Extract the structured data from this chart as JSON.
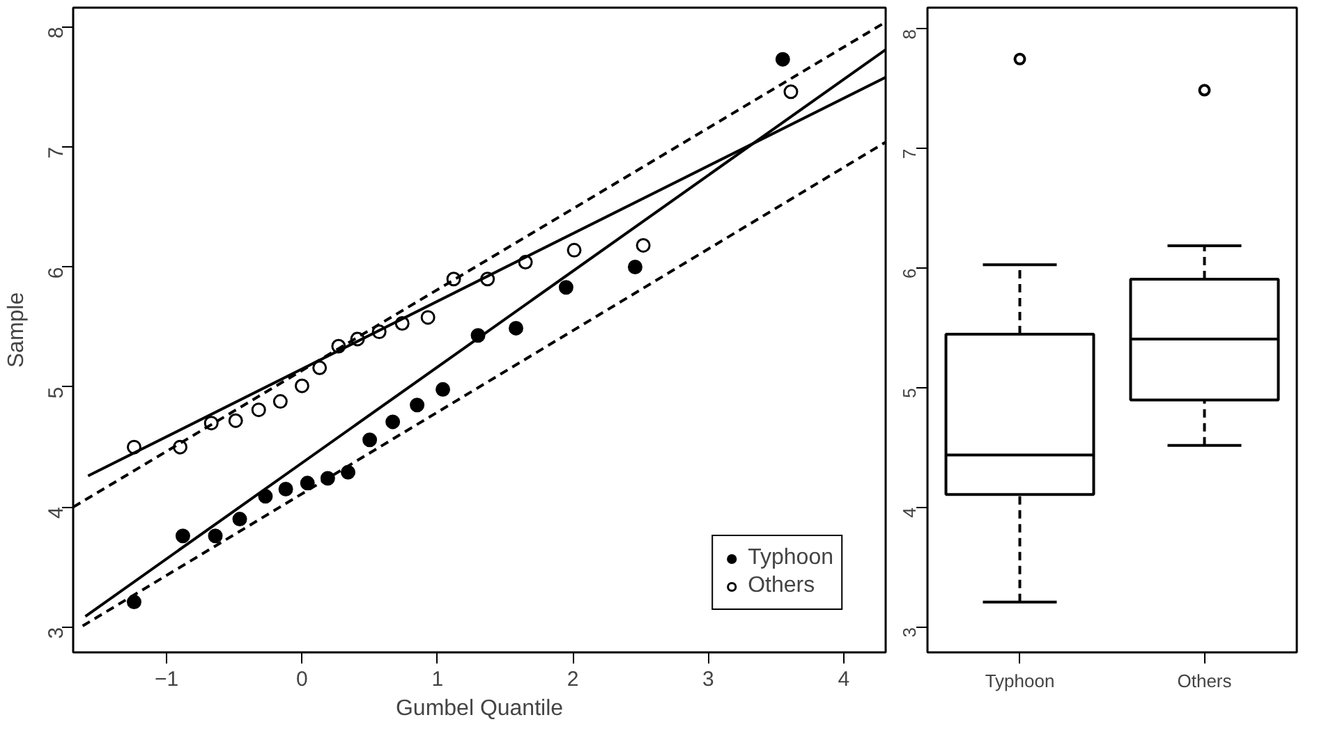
{
  "chart_data": [
    {
      "type": "scatter",
      "xlabel": "Gumbel Quantile",
      "ylabel": "Sample",
      "xlim": [
        -1.69,
        4.31
      ],
      "ylim": [
        2.79,
        8.16
      ],
      "xticks": [
        -1,
        0,
        1,
        2,
        3,
        4
      ],
      "yticks": [
        3,
        4,
        5,
        6,
        7,
        8
      ],
      "grid": false,
      "legend": "bottom right",
      "series": [
        {
          "name": "Typhoon",
          "color": "#000000",
          "marker": "circle",
          "x": [
            -1.24,
            -0.88,
            -0.64,
            -0.46,
            -0.27,
            -0.12,
            0.04,
            0.19,
            0.34,
            0.5,
            0.67,
            0.85,
            1.04,
            1.3,
            1.58,
            1.95,
            2.46,
            3.55
          ],
          "values": [
            3.21,
            3.76,
            3.76,
            3.9,
            4.09,
            4.15,
            4.2,
            4.24,
            4.29,
            4.56,
            4.71,
            4.85,
            4.98,
            5.43,
            5.49,
            5.83,
            6.0,
            7.73
          ]
        },
        {
          "name": "Others",
          "color": "#000000",
          "marker": "circle",
          "x": [
            -1.24,
            -0.9,
            -0.67,
            -0.49,
            -0.32,
            -0.16,
            0.0,
            0.13,
            0.27,
            0.41,
            0.57,
            0.74,
            0.93,
            1.12,
            1.37,
            1.65,
            2.01,
            2.52,
            3.61
          ],
          "values": [
            4.5,
            4.5,
            4.7,
            4.72,
            4.81,
            4.88,
            5.01,
            5.16,
            5.34,
            5.4,
            5.46,
            5.53,
            5.58,
            5.9,
            5.9,
            6.04,
            6.14,
            6.18,
            7.46
          ]
        },
        {
          "type": "line",
          "color": "#000000",
          "line_style": "solid",
          "x": [
            -1.6,
            4.31
          ],
          "values": [
            3.09,
            7.81
          ]
        },
        {
          "type": "line",
          "color": "#000000",
          "line_style": "solid",
          "x": [
            -1.58,
            4.31
          ],
          "values": [
            4.26,
            7.58
          ]
        },
        {
          "type": "line",
          "color": "#000000",
          "line_style": "dashed",
          "x": [
            -1.69,
            4.31
          ],
          "values": [
            4.0,
            8.04
          ]
        },
        {
          "type": "line",
          "color": "#000000",
          "line_style": "dashed",
          "x": [
            -1.62,
            4.31
          ],
          "values": [
            3.01,
            7.04
          ]
        }
      ]
    },
    {
      "type": "box",
      "categories": [
        "Typhoon",
        "Others"
      ],
      "ylim": [
        2.79,
        8.18
      ],
      "yticks": [
        3,
        4,
        5,
        6,
        7,
        8
      ],
      "grid": false,
      "boxes": [
        {
          "low": 3.21,
          "q1": 4.11,
          "median": 4.44,
          "q3": 5.45,
          "high": 6.03,
          "outliers": [
            7.75
          ]
        },
        {
          "low": 4.52,
          "q1": 4.9,
          "median": 5.41,
          "q3": 5.91,
          "high": 6.19,
          "outliers": [
            7.49
          ]
        }
      ]
    }
  ]
}
